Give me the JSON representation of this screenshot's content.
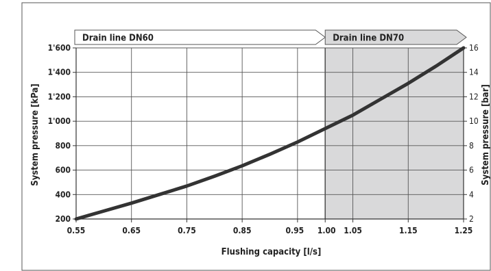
{
  "chart_data": {
    "type": "line",
    "xlabel": "Flushing capacity [l/s]",
    "ylabel": "System pressure [kPa]",
    "y2label": "System pressure [bar]",
    "xlim": [
      0.55,
      1.25
    ],
    "ylim": [
      200,
      1600
    ],
    "y2lim": [
      2,
      16
    ],
    "xticks": [
      {
        "value": 0.55,
        "label": "0.55"
      },
      {
        "value": 0.65,
        "label": "0.65"
      },
      {
        "value": 0.75,
        "label": "0.75"
      },
      {
        "value": 0.85,
        "label": "0.85"
      },
      {
        "value": 0.95,
        "label": "0.95"
      },
      {
        "value": 1.0,
        "label": "1.00"
      },
      {
        "value": 1.05,
        "label": "1.05"
      },
      {
        "value": 1.15,
        "label": "1.15"
      },
      {
        "value": 1.25,
        "label": "1.25"
      }
    ],
    "yticks": [
      {
        "value": 200,
        "label": "200"
      },
      {
        "value": 400,
        "label": "400"
      },
      {
        "value": 600,
        "label": "600"
      },
      {
        "value": 800,
        "label": "800"
      },
      {
        "value": 1000,
        "label": "1'000"
      },
      {
        "value": 1200,
        "label": "1'200"
      },
      {
        "value": 1400,
        "label": "1'400"
      },
      {
        "value": 1600,
        "label": "1'600"
      }
    ],
    "y2ticks": [
      {
        "value": 2,
        "label": "2"
      },
      {
        "value": 4,
        "label": "4"
      },
      {
        "value": 6,
        "label": "6"
      },
      {
        "value": 8,
        "label": "8"
      },
      {
        "value": 10,
        "label": "10"
      },
      {
        "value": 12,
        "label": "12"
      },
      {
        "value": 14,
        "label": "14"
      },
      {
        "value": 16,
        "label": "16"
      }
    ],
    "grid": true,
    "regions": [
      {
        "label": "Drain line DN60",
        "from": 0.55,
        "to": 1.0,
        "shaded": false
      },
      {
        "label": "Drain line DN70",
        "from": 1.0,
        "to": 1.25,
        "shaded": true,
        "shade_color": "#d9d9da"
      }
    ],
    "series": [
      {
        "color": "#333333",
        "x": [
          0.55,
          0.6,
          0.65,
          0.7,
          0.75,
          0.8,
          0.85,
          0.9,
          0.95,
          1.0,
          1.05,
          1.1,
          1.15,
          1.2,
          1.25
        ],
        "y": [
          200,
          265,
          330,
          400,
          470,
          550,
          635,
          730,
          830,
          940,
          1050,
          1180,
          1310,
          1450,
          1600
        ]
      }
    ]
  }
}
